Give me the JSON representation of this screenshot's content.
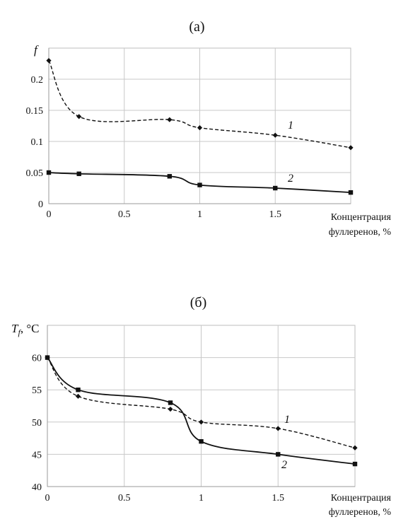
{
  "chart_data": [
    {
      "type": "line",
      "panel_label": "(а)",
      "ylabel": "f",
      "ylabel_sub": "",
      "ylabel_suffix": "",
      "xlabel_line1": "Концентрация",
      "xlabel_line2": "фуллеренов, %",
      "x_ticks": [
        "0",
        "0.5",
        "1",
        "1.5"
      ],
      "y_ticks": [
        "0",
        "0.05",
        "0.1",
        "0.15",
        "0.2"
      ],
      "xlim": [
        0,
        2
      ],
      "ylim": [
        0,
        0.25
      ],
      "grid": true,
      "x": [
        0,
        0.2,
        0.8,
        1.0,
        1.5,
        2.0
      ],
      "series": [
        {
          "name": "1",
          "style": "dashed",
          "marker": "diamond",
          "color": "#111111",
          "values": [
            0.23,
            0.14,
            0.135,
            0.122,
            0.11,
            0.09
          ]
        },
        {
          "name": "2",
          "style": "solid",
          "marker": "square",
          "color": "#111111",
          "values": [
            0.05,
            0.048,
            0.044,
            0.03,
            0.025,
            0.018
          ]
        }
      ]
    },
    {
      "type": "line",
      "panel_label": "(б)",
      "ylabel": "T",
      "ylabel_sub": "f",
      "ylabel_suffix": ", °C",
      "xlabel_line1": "Концентрация",
      "xlabel_line2": "фуллеренов, %",
      "x_ticks": [
        "0",
        "0.5",
        "1",
        "1.5"
      ],
      "y_ticks": [
        "40",
        "45",
        "50",
        "55",
        "60"
      ],
      "xlim": [
        0,
        2
      ],
      "ylim": [
        40,
        65
      ],
      "grid": true,
      "x": [
        0,
        0.2,
        0.8,
        1.0,
        1.5,
        2.0
      ],
      "series": [
        {
          "name": "1",
          "style": "dashed",
          "marker": "diamond",
          "color": "#111111",
          "values": [
            60,
            54,
            52,
            50,
            49,
            46
          ]
        },
        {
          "name": "2",
          "style": "solid",
          "marker": "square",
          "color": "#111111",
          "values": [
            60,
            55,
            53,
            47,
            45,
            43.5
          ]
        }
      ]
    }
  ]
}
